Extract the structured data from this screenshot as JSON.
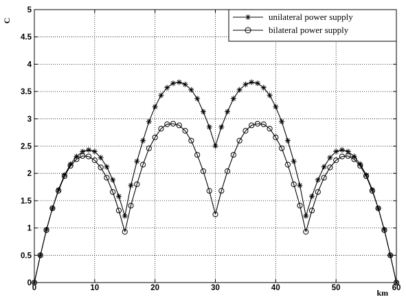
{
  "chart_data": {
    "type": "line",
    "title": "",
    "xlabel": "km",
    "ylabel": "C",
    "xlim": [
      0,
      60
    ],
    "ylim": [
      0,
      5
    ],
    "xticks": [
      0,
      10,
      20,
      30,
      40,
      50,
      60
    ],
    "yticks": [
      0,
      0.5,
      1,
      1.5,
      2,
      2.5,
      3,
      3.5,
      4,
      4.5,
      5
    ],
    "ytick_labels": [
      "0",
      "0.5",
      "1",
      "1.5",
      "2",
      "2.5",
      "3",
      "3.5",
      "4",
      "4.5",
      "5"
    ],
    "grid": true,
    "grid_style": "dotted",
    "legend_position": "top-right",
    "series": [
      {
        "name": "unilateral power supply",
        "marker": "asterisk",
        "x": [
          0,
          1,
          2,
          3,
          4,
          5,
          6,
          7,
          8,
          9,
          10,
          11,
          12,
          13,
          14,
          15,
          16,
          17,
          18,
          19,
          20,
          21,
          22,
          23,
          24,
          25,
          26,
          27,
          28,
          29,
          30,
          31,
          32,
          33,
          34,
          35,
          36,
          37,
          38,
          39,
          40,
          41,
          42,
          43,
          44,
          45,
          46,
          47,
          48,
          49,
          50,
          51,
          52,
          53,
          54,
          55,
          56,
          57,
          58,
          59,
          60
        ],
        "y": [
          0,
          0.5,
          0.97,
          1.36,
          1.7,
          1.97,
          2.17,
          2.31,
          2.4,
          2.43,
          2.4,
          2.29,
          2.12,
          1.88,
          1.58,
          1.22,
          1.78,
          2.22,
          2.6,
          2.95,
          3.22,
          3.43,
          3.57,
          3.65,
          3.67,
          3.63,
          3.53,
          3.37,
          3.13,
          2.85,
          2.5,
          2.85,
          3.13,
          3.37,
          3.53,
          3.63,
          3.67,
          3.65,
          3.57,
          3.43,
          3.22,
          2.95,
          2.6,
          2.22,
          1.78,
          1.22,
          1.58,
          1.88,
          2.12,
          2.29,
          2.4,
          2.43,
          2.4,
          2.31,
          2.17,
          1.97,
          1.7,
          1.36,
          0.97,
          0.5,
          0
        ]
      },
      {
        "name": "bilateral power supply",
        "marker": "circle",
        "x": [
          0,
          1,
          2,
          3,
          4,
          5,
          6,
          7,
          8,
          9,
          10,
          11,
          12,
          13,
          14,
          15,
          16,
          17,
          18,
          19,
          20,
          21,
          22,
          23,
          24,
          25,
          26,
          27,
          28,
          29,
          30,
          31,
          32,
          33,
          34,
          35,
          36,
          37,
          38,
          39,
          40,
          41,
          42,
          43,
          44,
          45,
          46,
          47,
          48,
          49,
          50,
          51,
          52,
          53,
          54,
          55,
          56,
          57,
          58,
          59,
          60
        ],
        "y": [
          0,
          0.5,
          0.96,
          1.36,
          1.68,
          1.95,
          2.14,
          2.26,
          2.32,
          2.31,
          2.24,
          2.11,
          1.92,
          1.66,
          1.32,
          0.93,
          1.41,
          1.8,
          2.16,
          2.46,
          2.66,
          2.82,
          2.9,
          2.91,
          2.88,
          2.78,
          2.6,
          2.34,
          2.04,
          1.68,
          1.25,
          1.68,
          2.04,
          2.34,
          2.6,
          2.78,
          2.88,
          2.91,
          2.9,
          2.82,
          2.66,
          2.46,
          2.16,
          1.8,
          1.41,
          0.93,
          1.32,
          1.66,
          1.92,
          2.11,
          2.24,
          2.31,
          2.32,
          2.26,
          2.14,
          1.95,
          1.68,
          1.36,
          0.96,
          0.5,
          0
        ]
      }
    ]
  }
}
